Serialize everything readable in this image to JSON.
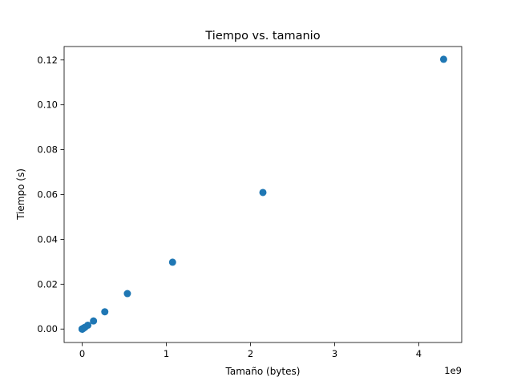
{
  "chart_data": {
    "type": "scatter",
    "title": "Tiempo vs. tamanio",
    "xlabel": "Tamaño (bytes)",
    "ylabel": "Tiempo (s)",
    "x_offset_text": "1e9",
    "x_scale_factor": 1000000000,
    "xlim": [
      -0.215,
      4.51
    ],
    "ylim": [
      -0.006,
      0.126
    ],
    "x_ticks": [
      0,
      1,
      2,
      3,
      4
    ],
    "x_tick_labels": [
      "0",
      "1",
      "2",
      "3",
      "4"
    ],
    "y_ticks": [
      0.0,
      0.02,
      0.04,
      0.06,
      0.08,
      0.1,
      0.12
    ],
    "y_tick_labels": [
      "0.00",
      "0.02",
      "0.04",
      "0.06",
      "0.08",
      "0.10",
      "0.12"
    ],
    "grid": false,
    "legend": "none",
    "marker_color": "#1f77b4",
    "series": [
      {
        "x": [
          1024,
          2048,
          4096,
          8192,
          16384,
          32768,
          65536,
          131072,
          262144,
          524288,
          1048576,
          2097152,
          4194304,
          8388608,
          16777216,
          33554432,
          67108864,
          134217728,
          268435456,
          536870912,
          1073741824,
          2147483648,
          4294967296
        ],
        "y": [
          0.0,
          0.0,
          0.0,
          0.0,
          0.0,
          0.0,
          0.0,
          0.0,
          0.0,
          0.0,
          3e-05,
          6e-05,
          0.0001,
          0.0002,
          0.0004,
          0.0008,
          0.0017,
          0.0036,
          0.0077,
          0.0158,
          0.0298,
          0.0609,
          0.1203
        ]
      }
    ]
  }
}
